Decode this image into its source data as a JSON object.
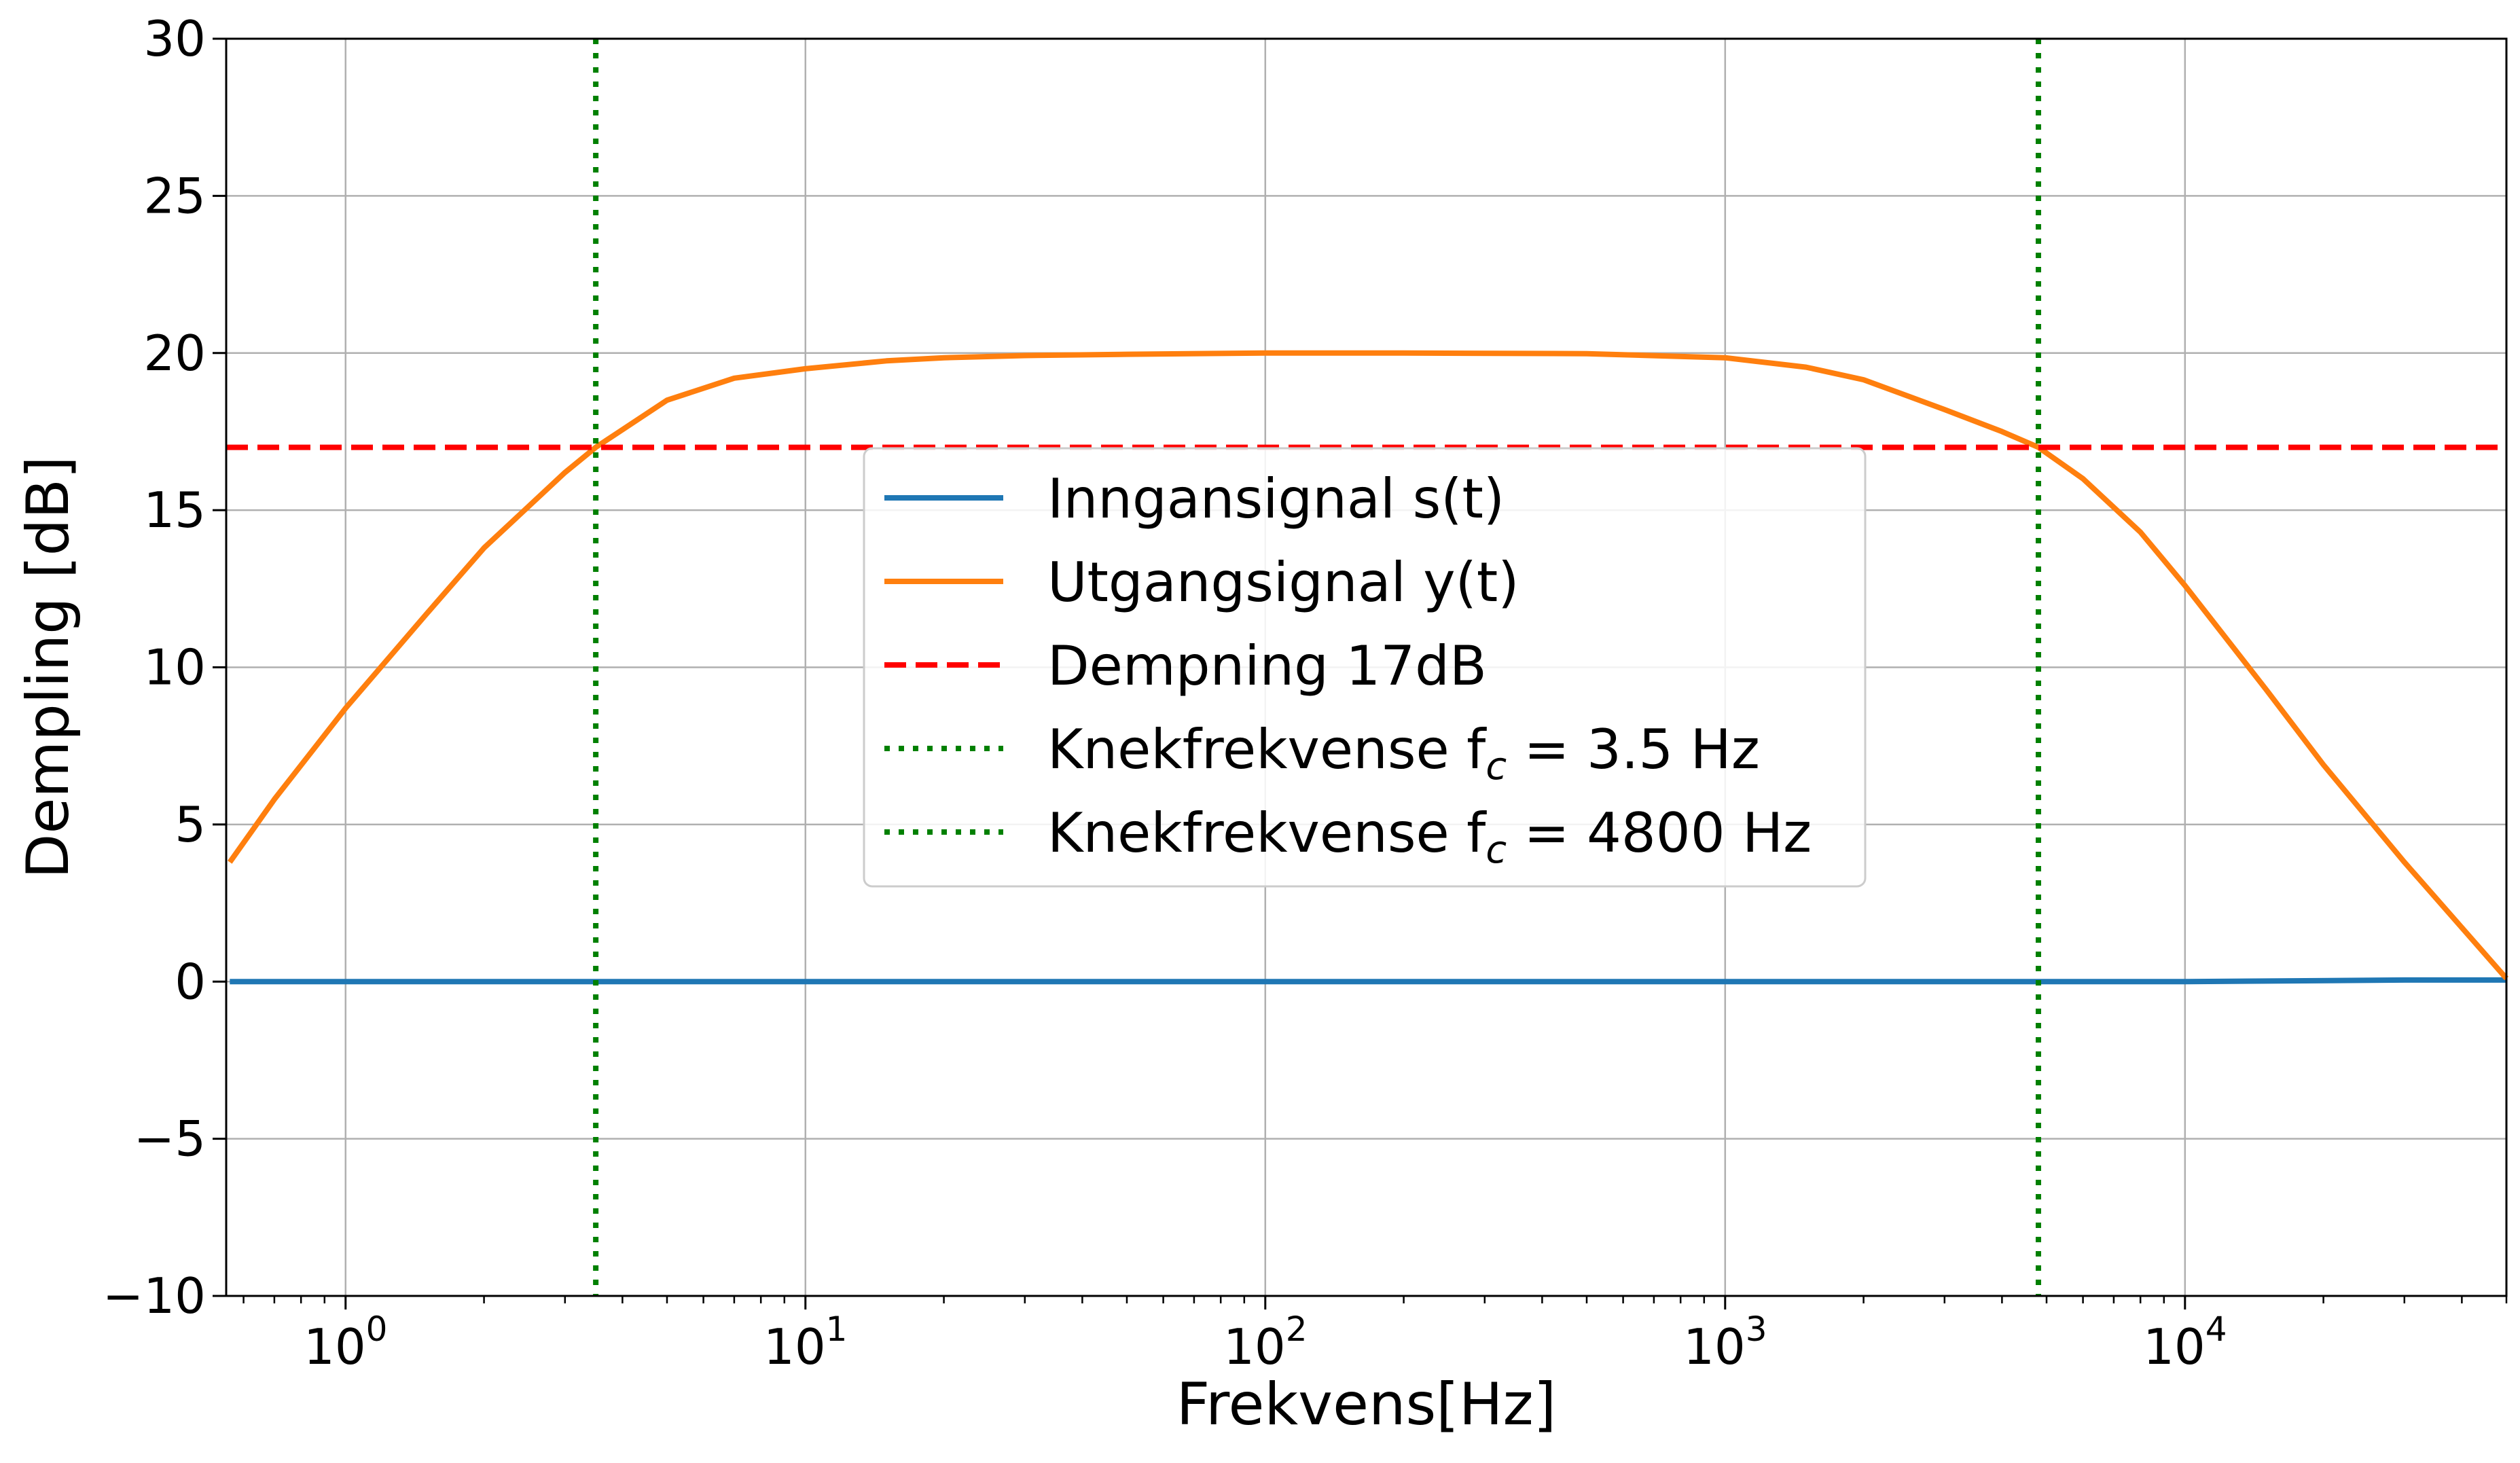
{
  "chart_data": {
    "type": "line",
    "xlabel": "Frekvens[Hz]",
    "ylabel": "Dempling [dB]",
    "x_scale": "log",
    "xlim": [
      0.55,
      50000
    ],
    "ylim": [
      -10,
      30
    ],
    "grid": true,
    "legend_placement": "center",
    "y_ticks": [
      -10,
      -5,
      0,
      5,
      10,
      15,
      20,
      25,
      30
    ],
    "y_tick_labels": [
      "−10",
      "−5",
      "0",
      "5",
      "10",
      "15",
      "20",
      "25",
      "30"
    ],
    "x_ticks": [
      {
        "value": 1,
        "base": "10",
        "exp": "0"
      },
      {
        "value": 10,
        "base": "10",
        "exp": "1"
      },
      {
        "value": 100,
        "base": "10",
        "exp": "2"
      },
      {
        "value": 1000,
        "base": "10",
        "exp": "3"
      },
      {
        "value": 10000,
        "base": "10",
        "exp": "4"
      }
    ],
    "series": [
      {
        "name": "Inngansignal s(t)",
        "color": "#1f77b4",
        "style": "solid",
        "x": [
          0.56,
          1,
          10,
          100,
          1000,
          5000,
          10000,
          30000,
          50000
        ],
        "y": [
          0,
          0,
          0,
          0,
          0,
          0,
          0,
          0.05,
          0.05
        ]
      },
      {
        "name": "Utgangsignal y(t)",
        "color": "#ff7f0e",
        "style": "solid",
        "x": [
          0.56,
          0.7,
          1,
          1.5,
          2,
          3,
          3.5,
          5,
          7,
          10,
          15,
          20,
          30,
          50,
          100,
          200,
          500,
          1000,
          1500,
          2000,
          3000,
          4000,
          4800,
          6000,
          8000,
          10000,
          15000,
          20000,
          30000,
          50000
        ],
        "y": [
          3.8,
          5.8,
          8.7,
          11.7,
          13.8,
          16.2,
          17,
          18.5,
          19.2,
          19.5,
          19.75,
          19.85,
          19.92,
          19.96,
          20,
          20,
          19.98,
          19.85,
          19.55,
          19.15,
          18.2,
          17.5,
          17,
          16,
          14.3,
          12.6,
          9.3,
          6.9,
          3.8,
          0.1
        ]
      },
      {
        "name": "Dempning 17dB",
        "color": "#ff0000",
        "style": "dashed",
        "y_const": 17
      },
      {
        "name": "Knekfrekvense f",
        "name_sub": "c",
        "name_suffix": " = 3.5 Hz",
        "color": "#008000",
        "style": "dotted",
        "x_const": 3.5
      },
      {
        "name": "Knekfrekvense f",
        "name_sub": "c",
        "name_suffix": " = 4800 Hz",
        "color": "#008000",
        "style": "dotted",
        "x_const": 4800
      }
    ]
  }
}
